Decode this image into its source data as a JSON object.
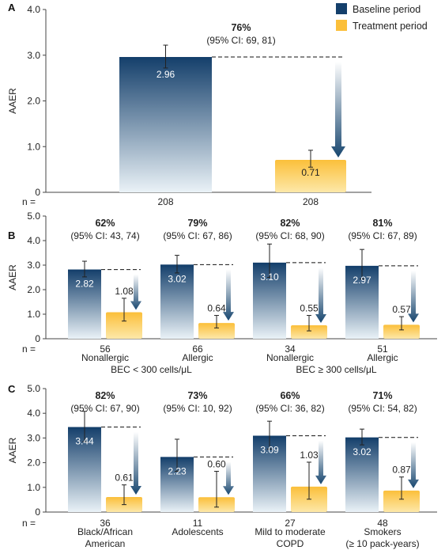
{
  "legend": {
    "baseline": "Baseline period",
    "treatment": "Treatment period"
  },
  "colors": {
    "baseline_top": "#143f6b",
    "baseline_bottom": "#eaf2f7",
    "treatment_top": "#fbbf3a",
    "treatment_bottom": "#fde8a9",
    "arrow_top": "#ffffff",
    "arrow_bottom": "#17466f"
  },
  "n_label": "n =",
  "chart_data": [
    {
      "type": "bar",
      "panel": "A",
      "ylabel": "AAER",
      "ylim": [
        0,
        4
      ],
      "yticks": [
        "0",
        "1.0",
        "2.0",
        "3.0",
        "4.0"
      ],
      "legend_position": "top-right",
      "groups": [
        {
          "reduction": "76%",
          "ci": "(95% CI: 69, 81)",
          "baseline": {
            "value": 2.96,
            "label": "2.96",
            "err": [
              2.72,
              3.22
            ],
            "n": "208"
          },
          "treatment": {
            "value": 0.71,
            "label": "0.71",
            "err": [
              0.55,
              0.92
            ],
            "n": "208"
          },
          "category": ""
        }
      ]
    },
    {
      "type": "bar",
      "panel": "B",
      "ylabel": "AAER",
      "ylim": [
        0,
        5
      ],
      "yticks": [
        "0",
        "1.0",
        "2.0",
        "3.0",
        "4.0",
        "5.0"
      ],
      "groups": [
        {
          "reduction": "62%",
          "ci": "(95% CI: 43, 74)",
          "baseline": {
            "value": 2.82,
            "label": "2.82",
            "err": [
              2.52,
              3.16
            ]
          },
          "treatment": {
            "value": 1.08,
            "label": "1.08",
            "err": [
              0.72,
              1.65
            ]
          },
          "n": "56",
          "category": "Nonallergic"
        },
        {
          "reduction": "79%",
          "ci": "(95% CI: 67, 86)",
          "baseline": {
            "value": 3.02,
            "label": "3.02",
            "err": [
              2.68,
              3.4
            ]
          },
          "treatment": {
            "value": 0.64,
            "label": "0.64",
            "err": [
              0.44,
              0.95
            ]
          },
          "n": "66",
          "category": "Allergic"
        },
        {
          "reduction": "82%",
          "ci": "(95% CI: 68, 90)",
          "baseline": {
            "value": 3.1,
            "label": "3.10",
            "err": [
              2.5,
              3.86
            ]
          },
          "treatment": {
            "value": 0.55,
            "label": "0.55",
            "err": [
              0.32,
              0.95
            ]
          },
          "n": "34",
          "category": "Nonallergic"
        },
        {
          "reduction": "81%",
          "ci": "(95% CI: 67, 89)",
          "baseline": {
            "value": 2.97,
            "label": "2.97",
            "err": [
              2.44,
              3.64
            ]
          },
          "treatment": {
            "value": 0.57,
            "label": "0.57",
            "err": [
              0.36,
              0.9
            ]
          },
          "n": "51",
          "category": "Allergic"
        }
      ],
      "subgroups": [
        "BEC < 300 cells/μL",
        "BEC ≥ 300 cells/μL"
      ]
    },
    {
      "type": "bar",
      "panel": "C",
      "ylabel": "AAER",
      "ylim": [
        0,
        5
      ],
      "yticks": [
        "0",
        "1.0",
        "2.0",
        "3.0",
        "4.0",
        "5.0"
      ],
      "groups": [
        {
          "reduction": "82%",
          "ci": "(95% CI: 67, 90)",
          "baseline": {
            "value": 3.44,
            "label": "3.44",
            "err": [
              2.85,
              4.08
            ]
          },
          "treatment": {
            "value": 0.61,
            "label": "0.61",
            "err": [
              0.3,
              1.1
            ]
          },
          "n": "36",
          "category": "Black/African American"
        },
        {
          "reduction": "73%",
          "ci": "(95% CI: 10, 92)",
          "baseline": {
            "value": 2.23,
            "label": "2.23",
            "err": [
              1.65,
              2.95
            ]
          },
          "treatment": {
            "value": 0.6,
            "label": "0.60",
            "err": [
              0.2,
              1.65
            ]
          },
          "n": "11",
          "category": "Adolescents"
        },
        {
          "reduction": "66%",
          "ci": "(95% CI: 36, 82)",
          "baseline": {
            "value": 3.09,
            "label": "3.09",
            "err": [
              2.55,
              3.68
            ]
          },
          "treatment": {
            "value": 1.03,
            "label": "1.03",
            "err": [
              0.52,
              2.02
            ]
          },
          "n": "27",
          "category": "Mild to moderate COPD"
        },
        {
          "reduction": "71%",
          "ci": "(95% CI: 54, 82)",
          "baseline": {
            "value": 3.02,
            "label": "3.02",
            "err": [
              2.72,
              3.36
            ]
          },
          "treatment": {
            "value": 0.87,
            "label": "0.87",
            "err": [
              0.52,
              1.42
            ]
          },
          "n": "48",
          "category": "Smokers (≥ 10 pack-years)"
        }
      ]
    }
  ]
}
